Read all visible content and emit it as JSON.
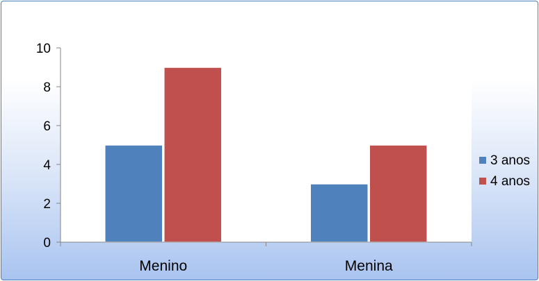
{
  "chart_data": {
    "type": "bar",
    "categories": [
      "Menino",
      "Menina"
    ],
    "series": [
      {
        "name": "3 anos",
        "values": [
          5,
          3
        ],
        "color": "#4f81bd"
      },
      {
        "name": "4 anos",
        "values": [
          9,
          5
        ],
        "color": "#c0504d"
      }
    ],
    "title": "",
    "xlabel": "",
    "ylabel": "",
    "ylim": [
      0,
      10
    ],
    "yticks": [
      0,
      2,
      4,
      6,
      8,
      10
    ],
    "grid": false,
    "legend_position": "right"
  }
}
